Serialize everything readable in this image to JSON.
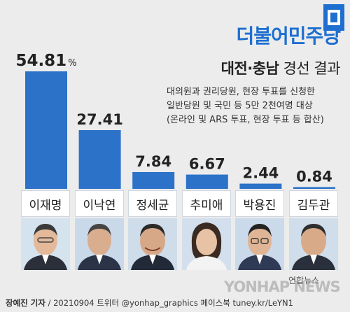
{
  "header": {
    "party": "더불어민주당",
    "region": "대전·충남",
    "suffix": "경선 결과"
  },
  "note_lines": [
    "대의원과 권리당원, 현장 투표를 신청한",
    "일반당원 및 국민 등 5만 2천여명 대상",
    "(온라인 및 ARS 투표, 현장 투표 등 합산)"
  ],
  "chart_data": {
    "type": "bar",
    "categories": [
      "이재명",
      "이낙연",
      "정세균",
      "추미애",
      "박용진",
      "김두관"
    ],
    "values": [
      54.81,
      27.41,
      7.84,
      6.67,
      2.44,
      0.84
    ],
    "value_labels": [
      "54.81",
      "27.41",
      "7.84",
      "6.67",
      "2.44",
      "0.84"
    ],
    "unit": "%",
    "bar_color": "#2c72c9"
  },
  "footer": {
    "author": "장예진 기자",
    "rest": " / 20210904 트위터 @yonhap_graphics  페이스북 tuney.kr/LeYN1"
  },
  "watermark": "YONHAP NEWS",
  "brand": "연합뉴스",
  "colors": {
    "accent": "#1e6fd0",
    "background": "#ececec"
  }
}
